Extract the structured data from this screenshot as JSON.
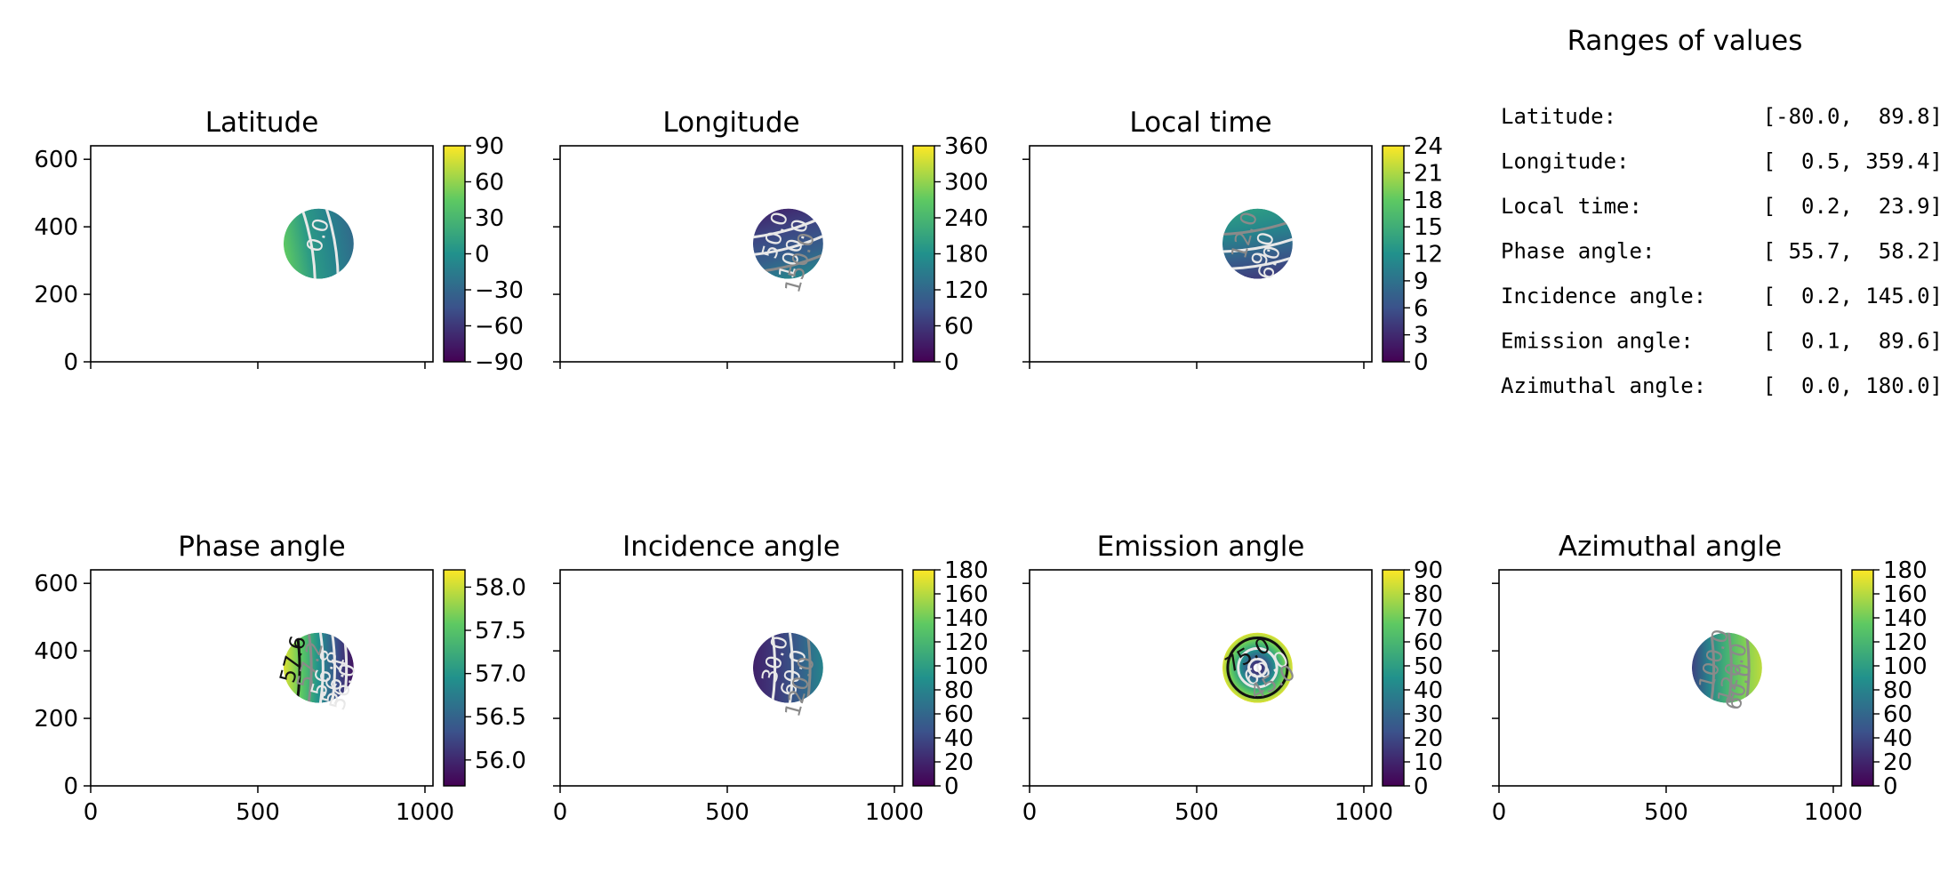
{
  "figure": {
    "ranges_panel": {
      "title": "Ranges of values",
      "rows": [
        {
          "label": "Latitude:",
          "value": "[-80.0,  89.8]"
        },
        {
          "label": "Longitude:",
          "value": "[  0.5, 359.4]"
        },
        {
          "label": "Local time:",
          "value": "[  0.2,  23.9]"
        },
        {
          "label": "Phase angle:",
          "value": "[ 55.7,  58.2]"
        },
        {
          "label": "Incidence angle:",
          "value": "[  0.2, 145.0]"
        },
        {
          "label": "Emission angle:",
          "value": "[  0.1,  89.6]"
        },
        {
          "label": "Azimuthal angle:",
          "value": "[  0.0, 180.0]"
        }
      ]
    }
  },
  "colors": {
    "viridis": [
      "#440154",
      "#3b528b",
      "#21918c",
      "#5ec962",
      "#fde725"
    ],
    "contour_light": "#e8e8e8",
    "contour_gray": "#8a8a8a",
    "contour_dark": "#111111"
  },
  "chart_data": [
    {
      "type": "heatmap",
      "title": "Latitude",
      "xlim": [
        0,
        1024
      ],
      "ylim": [
        0,
        640
      ],
      "xticks": [
        0,
        500,
        1000
      ],
      "yticks": [
        0,
        200,
        400,
        600
      ],
      "x_ticklabels_shown": false,
      "y_ticklabels_shown": true,
      "disk": {
        "center": [
          682,
          350
        ],
        "radius": 105
      },
      "field": "latitude",
      "colorbar": {
        "min": -90,
        "max": 90,
        "ticks": [
          -90,
          -60,
          -30,
          0,
          30,
          60,
          90
        ],
        "ticklabels": [
          "−90",
          "−60",
          "−30",
          "0",
          "30",
          "60",
          "90"
        ]
      },
      "contour_labels": [
        {
          "text": "0.0",
          "color": "light"
        }
      ]
    },
    {
      "type": "heatmap",
      "title": "Longitude",
      "xlim": [
        0,
        1024
      ],
      "ylim": [
        0,
        640
      ],
      "xticks": [
        0,
        500,
        1000
      ],
      "yticks": [
        0,
        200,
        400,
        600
      ],
      "x_ticklabels_shown": false,
      "y_ticklabels_shown": false,
      "disk": {
        "center": [
          682,
          350
        ],
        "radius": 105
      },
      "field": "longitude",
      "colorbar": {
        "min": 0,
        "max": 360,
        "ticks": [
          0,
          60,
          120,
          180,
          240,
          300,
          360
        ],
        "ticklabels": [
          "0",
          "60",
          "120",
          "180",
          "240",
          "300",
          "360"
        ]
      },
      "contour_labels": [
        {
          "text": "50.0",
          "color": "light"
        },
        {
          "text": "100.0",
          "color": "light"
        },
        {
          "text": "150.0",
          "color": "gray"
        }
      ]
    },
    {
      "type": "heatmap",
      "title": "Local time",
      "xlim": [
        0,
        1024
      ],
      "ylim": [
        0,
        640
      ],
      "xticks": [
        0,
        500,
        1000
      ],
      "yticks": [
        0,
        200,
        400,
        600
      ],
      "x_ticklabels_shown": false,
      "y_ticklabels_shown": false,
      "disk": {
        "center": [
          682,
          350
        ],
        "radius": 105
      },
      "field": "localtime",
      "colorbar": {
        "min": 0,
        "max": 24,
        "ticks": [
          0,
          3,
          6,
          9,
          12,
          15,
          18,
          21,
          24
        ],
        "ticklabels": [
          "0",
          "3",
          "6",
          "9",
          "12",
          "15",
          "18",
          "21",
          "24"
        ]
      },
      "contour_labels": [
        {
          "text": "12.0",
          "color": "gray"
        },
        {
          "text": "9.0",
          "color": "light"
        },
        {
          "text": "6.0",
          "color": "light"
        }
      ]
    },
    {
      "type": "heatmap",
      "title": "Phase angle",
      "xlim": [
        0,
        1024
      ],
      "ylim": [
        0,
        640
      ],
      "xticks": [
        0,
        500,
        1000
      ],
      "yticks": [
        0,
        200,
        400,
        600
      ],
      "x_ticklabels_shown": true,
      "y_ticklabels_shown": true,
      "disk": {
        "center": [
          682,
          350
        ],
        "radius": 105
      },
      "field": "phase",
      "colorbar": {
        "min": 55.7,
        "max": 58.2,
        "ticks": [
          56.0,
          56.5,
          57.0,
          57.5,
          58.0
        ],
        "ticklabels": [
          "56.0",
          "56.5",
          "57.0",
          "57.5",
          "58.0"
        ]
      },
      "contour_labels": [
        {
          "text": "57.6",
          "color": "dark"
        },
        {
          "text": "57.2",
          "color": "gray"
        },
        {
          "text": "56.8",
          "color": "light"
        },
        {
          "text": "56.4",
          "color": "light"
        },
        {
          "text": "56.0",
          "color": "light"
        }
      ]
    },
    {
      "type": "heatmap",
      "title": "Incidence angle",
      "xlim": [
        0,
        1024
      ],
      "ylim": [
        0,
        640
      ],
      "xticks": [
        0,
        500,
        1000
      ],
      "yticks": [
        0,
        200,
        400,
        600
      ],
      "x_ticklabels_shown": true,
      "y_ticklabels_shown": false,
      "disk": {
        "center": [
          682,
          350
        ],
        "radius": 105
      },
      "field": "incidence",
      "colorbar": {
        "min": 0,
        "max": 180,
        "ticks": [
          0,
          20,
          40,
          60,
          80,
          100,
          120,
          140,
          160,
          180
        ],
        "ticklabels": [
          "0",
          "20",
          "40",
          "60",
          "80",
          "100",
          "120",
          "140",
          "160",
          "180"
        ]
      },
      "contour_labels": [
        {
          "text": "30.0",
          "color": "light"
        },
        {
          "text": "60.0",
          "color": "light"
        },
        {
          "text": "120.0",
          "color": "gray"
        }
      ]
    },
    {
      "type": "heatmap",
      "title": "Emission angle",
      "xlim": [
        0,
        1024
      ],
      "ylim": [
        0,
        640
      ],
      "xticks": [
        0,
        500,
        1000
      ],
      "yticks": [
        0,
        200,
        400,
        600
      ],
      "x_ticklabels_shown": true,
      "y_ticklabels_shown": false,
      "disk": {
        "center": [
          682,
          350
        ],
        "radius": 105
      },
      "field": "emission",
      "colorbar": {
        "min": 0,
        "max": 90,
        "ticks": [
          0,
          10,
          20,
          30,
          40,
          50,
          60,
          70,
          80,
          90
        ],
        "ticklabels": [
          "0",
          "10",
          "20",
          "30",
          "40",
          "50",
          "60",
          "70",
          "80",
          "90"
        ]
      },
      "contour_labels": [
        {
          "text": "75.0",
          "color": "dark"
        },
        {
          "text": "60.0",
          "color": "light"
        },
        {
          "text": "45.0",
          "color": "gray"
        }
      ]
    },
    {
      "type": "heatmap",
      "title": "Azimuthal angle",
      "xlim": [
        0,
        1024
      ],
      "ylim": [
        0,
        640
      ],
      "xticks": [
        0,
        500,
        1000
      ],
      "yticks": [
        0,
        200,
        400,
        600
      ],
      "x_ticklabels_shown": true,
      "y_ticklabels_shown": false,
      "disk": {
        "center": [
          682,
          350
        ],
        "radius": 105
      },
      "field": "azimuth",
      "colorbar": {
        "min": 0,
        "max": 180,
        "ticks": [
          0,
          20,
          40,
          60,
          80,
          100,
          120,
          140,
          160,
          180
        ],
        "ticklabels": [
          "0",
          "20",
          "40",
          "60",
          "80",
          "100",
          "120",
          "140",
          "160",
          "180"
        ]
      },
      "contour_labels": [
        {
          "text": "100.0",
          "color": "gray"
        },
        {
          "text": "120.0",
          "color": "gray"
        },
        {
          "text": "60.0",
          "color": "gray"
        }
      ]
    }
  ]
}
